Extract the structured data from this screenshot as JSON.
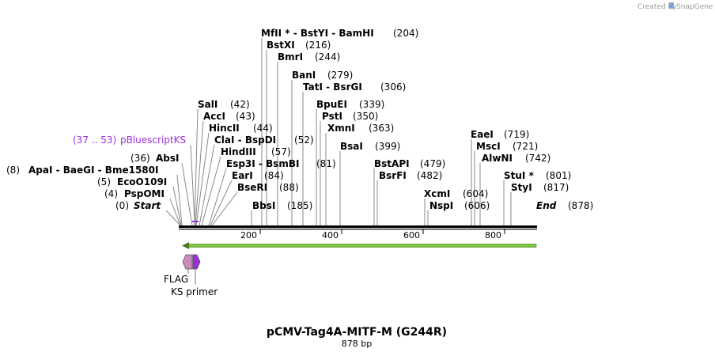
{
  "credit": {
    "created_by": "Created by",
    "brand": "SnapGene"
  },
  "plasmid": {
    "name": "pCMV-Tag4A-MITF-M (G244R)",
    "length_label": "878 bp"
  },
  "ruler": {
    "ticks": [
      "200",
      "400",
      "600",
      "800"
    ]
  },
  "ends": {
    "start_label": "Start",
    "start_pos": "(0)",
    "end_label": "End",
    "end_pos": "(878)"
  },
  "primer": {
    "range": "(37 .. 53)",
    "name": "pBluescriptKS",
    "color": "#9b30d9"
  },
  "sites": [
    {
      "text": "MfII * - BstYI - BamHI",
      "pos": "(204)"
    },
    {
      "text": "BstXI",
      "pos": "(216)"
    },
    {
      "text": "BmrI",
      "pos": "(244)"
    },
    {
      "text": "BanI",
      "pos": "(279)"
    },
    {
      "text": "TatI - BsrGI",
      "pos": "(306)"
    },
    {
      "text": "BpuEI",
      "pos": "(339)"
    },
    {
      "text": "PstI",
      "pos": "(350)"
    },
    {
      "text": "XmnI",
      "pos": "(363)"
    },
    {
      "text": "BsaI",
      "pos": "(399)"
    },
    {
      "text": "BstAPI",
      "pos": "(479)"
    },
    {
      "text": "BsrFI",
      "pos": "(482)"
    },
    {
      "text": "XcmI",
      "pos": "(604)"
    },
    {
      "text": "NspI",
      "pos": "(606)"
    },
    {
      "text": "EaeI",
      "pos": "(719)"
    },
    {
      "text": "MscI",
      "pos": "(721)"
    },
    {
      "text": "AlwNI",
      "pos": "(742)"
    },
    {
      "text": "StuI *",
      "pos": "(801)"
    },
    {
      "text": "StyI",
      "pos": "(817)"
    },
    {
      "text": "SalI",
      "pos": "(42)"
    },
    {
      "text": "AccI",
      "pos": "(43)"
    },
    {
      "text": "HincII",
      "pos": "(44)"
    },
    {
      "text": "ClaI - BspDI",
      "pos": "(52)"
    },
    {
      "text": "HindIII",
      "pos": "(57)"
    },
    {
      "text": "Esp3I - BsmBI",
      "pos": "(81)"
    },
    {
      "text": "EarI",
      "pos": "(84)"
    },
    {
      "text": "BseRI",
      "pos": "(88)"
    },
    {
      "text": "BbsI",
      "pos": "(185)"
    },
    {
      "text": "AbsI",
      "pos": "(36)"
    },
    {
      "text": "ApaI - BaeGI - Bme1580I",
      "pos": "(8)"
    },
    {
      "text": "EcoO109I",
      "pos": "(5)"
    },
    {
      "text": "PspOMI",
      "pos": "(4)"
    }
  ],
  "features": {
    "flag_label": "FLAG",
    "ks_primer_label": "KS primer",
    "flag_color": "#c98bb9",
    "ks_color": "#9b30d9",
    "orf_color": "#7ac943",
    "orf_arrow_color": "#4a7a1c"
  }
}
